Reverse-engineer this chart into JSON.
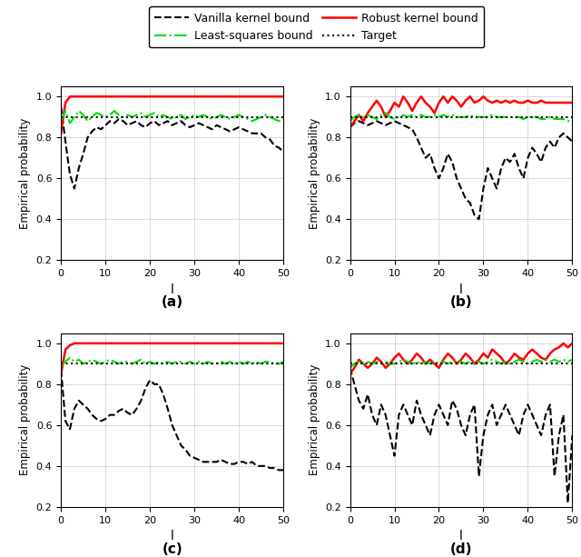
{
  "legend_entries": [
    "Vanilla kernel bound",
    "Least-squares bound",
    "Robust kernel bound",
    "Target"
  ],
  "line_colors": {
    "vanilla": "#000000",
    "robust": "#ff0000",
    "ls": "#00dd00",
    "target": "#000000"
  },
  "line_styles": {
    "vanilla": "--",
    "robust": "-",
    "ls": "-.",
    "target": ":"
  },
  "line_widths": {
    "vanilla": 1.5,
    "robust": 1.8,
    "ls": 1.5,
    "target": 1.5
  },
  "xlim": [
    0,
    50
  ],
  "ylim": [
    0.2,
    1.05
  ],
  "yticks": [
    0.2,
    0.4,
    0.6,
    0.8,
    1.0
  ],
  "xticks": [
    0,
    10,
    20,
    30,
    40,
    50
  ],
  "xlabel": "l",
  "ylabel": "Empirical probability",
  "subplot_labels": [
    "(a)",
    "(b)",
    "(c)",
    "(d)"
  ],
  "target_val": 0.9,
  "figsize": [
    6.4,
    6.13
  ],
  "dpi": 100,
  "grid_color": "#cccccc",
  "background": "#ffffff"
}
